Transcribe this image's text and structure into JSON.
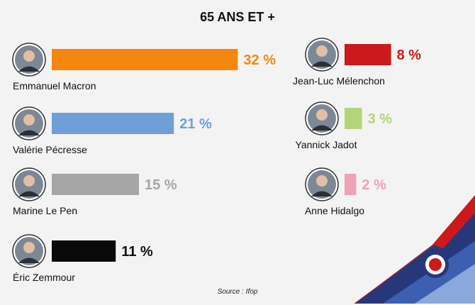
{
  "chart_data": {
    "type": "bar",
    "title": "65 ANS ET +",
    "categories": [
      "Emmanuel Macron",
      "Valérie Pécresse",
      "Marine Le Pen",
      "Éric Zemmour",
      "Jean-Luc Mélenchon",
      "Yannick Jadot",
      "Anne Hidalgo"
    ],
    "values": [
      32,
      21,
      15,
      11,
      8,
      3,
      2
    ],
    "value_labels": [
      "32 %",
      "21 %",
      "15 %",
      "11 %",
      "8 %",
      "3 %",
      "2 %"
    ],
    "colors": [
      "#f5870f",
      "#6f9fd8",
      "#a6a6a6",
      "#0a0a0a",
      "#cc1a1a",
      "#b3d57a",
      "#f0a1b6"
    ],
    "label_colors": [
      "#f5870f",
      "#6f9fd8",
      "#a6a6a6",
      "#111111",
      "#cc1a1a",
      "#b3d57a",
      "#f0a1b6"
    ],
    "legend": "none",
    "grid": false
  },
  "source": "Source :  Ifop"
}
